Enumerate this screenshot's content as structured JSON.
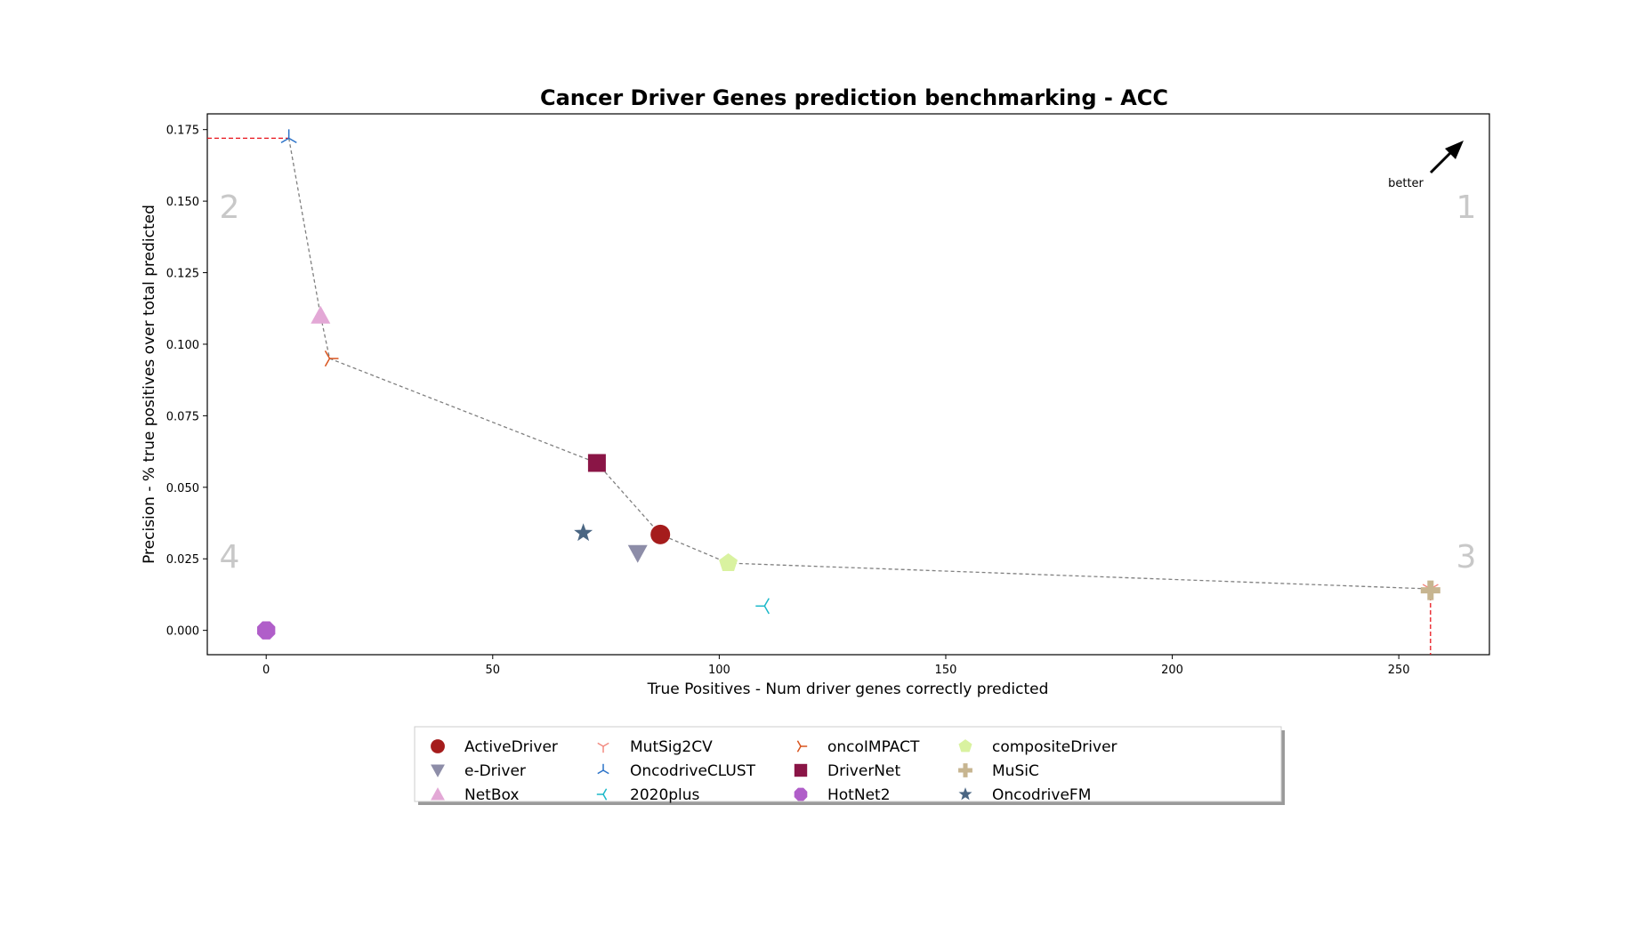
{
  "chart_data": {
    "type": "scatter",
    "title": "Cancer Driver Genes prediction benchmarking - ACC",
    "xlabel": "True Positives - Num driver genes correctly predicted",
    "ylabel": "Precision - % true positives over total predicted",
    "xlim": [
      -13,
      270
    ],
    "ylim": [
      -0.0085,
      0.1805
    ],
    "xticks": [
      0,
      50,
      100,
      150,
      200,
      250
    ],
    "yticks": [
      0.0,
      0.025,
      0.05,
      0.075,
      0.1,
      0.125,
      0.15,
      0.175
    ],
    "xtick_labels": [
      "0",
      "50",
      "100",
      "150",
      "200",
      "250"
    ],
    "ytick_labels": [
      "0.000",
      "0.025",
      "0.050",
      "0.075",
      "0.100",
      "0.125",
      "0.150",
      "0.175"
    ],
    "grid": false,
    "legend_position": "bottom",
    "quadrant_labels": [
      {
        "label": "1",
        "corner": "top-right"
      },
      {
        "label": "2",
        "corner": "top-left"
      },
      {
        "label": "3",
        "corner": "bottom-right"
      },
      {
        "label": "4",
        "corner": "bottom-left"
      }
    ],
    "annotation": "better",
    "series": [
      {
        "name": "ActiveDriver",
        "x": 87,
        "y": 0.0335,
        "color": "#a51c1c",
        "marker": "circle"
      },
      {
        "name": "e-Driver",
        "x": 82,
        "y": 0.027,
        "color": "#8d8da8",
        "marker": "triangle-down"
      },
      {
        "name": "NetBox",
        "x": 12,
        "y": 0.11,
        "color": "#e3a8d6",
        "marker": "triangle-up"
      },
      {
        "name": "MutSig2CV",
        "x": 257,
        "y": 0.0145,
        "color": "#f28a80",
        "marker": "tri-down"
      },
      {
        "name": "OncodriveCLUST",
        "x": 5,
        "y": 0.172,
        "color": "#2b72c8",
        "marker": "tri-up"
      },
      {
        "name": "2020plus",
        "x": 110,
        "y": 0.0085,
        "color": "#1bb8c9",
        "marker": "tri-left"
      },
      {
        "name": "oncoIMPACT",
        "x": 14,
        "y": 0.095,
        "color": "#d9541e",
        "marker": "tri-right"
      },
      {
        "name": "DriverNet",
        "x": 73,
        "y": 0.0585,
        "color": "#8a1546",
        "marker": "square"
      },
      {
        "name": "HotNet2",
        "x": 0,
        "y": 0.0,
        "color": "#b05ec9",
        "marker": "octagon"
      },
      {
        "name": "compositeDriver",
        "x": 102,
        "y": 0.0235,
        "color": "#d9f2a0",
        "marker": "pentagon"
      },
      {
        "name": "MuSiC",
        "x": 257,
        "y": 0.014,
        "color": "#c7b590",
        "marker": "plus"
      },
      {
        "name": "OncodriveFM",
        "x": 70,
        "y": 0.034,
        "color": "#4a6683",
        "marker": "star"
      }
    ],
    "pareto_frontier": [
      [
        5,
        0.172
      ],
      [
        12,
        0.11
      ],
      [
        14,
        0.095
      ],
      [
        73,
        0.0585
      ],
      [
        87,
        0.0335
      ],
      [
        102,
        0.0235
      ],
      [
        257,
        0.0145
      ]
    ]
  }
}
